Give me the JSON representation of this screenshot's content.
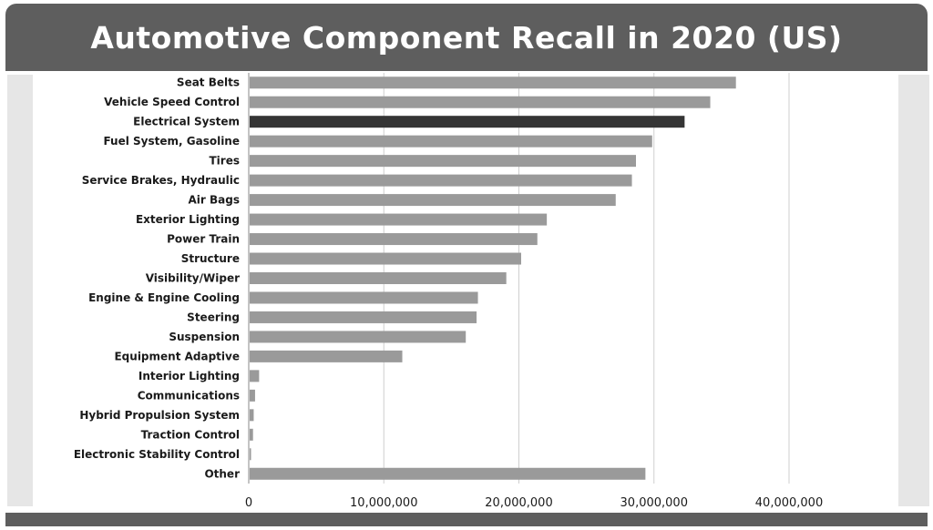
{
  "chart_data": {
    "type": "bar",
    "orientation": "horizontal",
    "title": "Automotive Component Recall in 2020 (US)",
    "categories": [
      "Seat Belts",
      "Vehicle Speed Control",
      "Electrical System",
      "Fuel System, Gasoline",
      "Tires",
      "Service Brakes, Hydraulic",
      "Air Bags",
      "Exterior Lighting",
      "Power Train",
      "Structure",
      "Visibility/Wiper",
      "Engine & Engine Cooling",
      "Steering",
      "Suspension",
      "Equipment Adaptive",
      "Interior Lighting",
      "Communications",
      "Hybrid Propulsion System",
      "Traction Control",
      "Electronic Stability Control",
      "Other"
    ],
    "values": [
      36000000,
      34100000,
      32200000,
      29800000,
      28600000,
      28300000,
      27100000,
      22000000,
      21300000,
      20100000,
      19000000,
      16900000,
      16800000,
      16000000,
      11300000,
      700000,
      400000,
      300000,
      250000,
      100000,
      29300000
    ],
    "highlight": "Electrical System",
    "xlim": [
      0,
      40000000
    ],
    "xticks": [
      0,
      10000000,
      20000000,
      30000000,
      40000000
    ],
    "xtick_labels": [
      "0",
      "10,000,000",
      "20,000,000",
      "30,000,000",
      "40,000,000"
    ],
    "grid": "vertical",
    "xlabel": "",
    "ylabel": "",
    "colors": {
      "bar": "#9a9a9a",
      "highlight": "#353535",
      "grid": "#cfcfcf",
      "title_bg": "#5e5e5e"
    }
  }
}
